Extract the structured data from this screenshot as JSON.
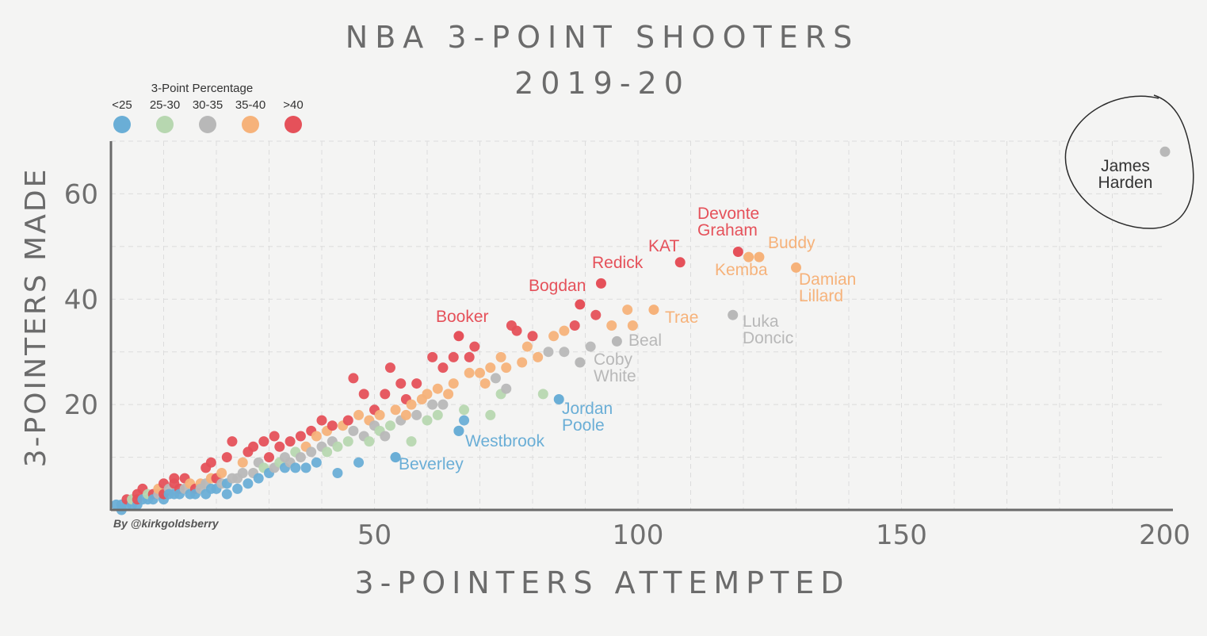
{
  "chart_data": {
    "type": "scatter",
    "title": [
      "NBA 3-POINT SHOOTERS",
      "2019-20"
    ],
    "xlabel": "3-POINTERS ATTEMPTED",
    "ylabel": "3-POINTERS MADE",
    "xlim": [
      0,
      200
    ],
    "ylim": [
      0,
      70
    ],
    "xticks": [
      "50",
      "100",
      "150",
      "200"
    ],
    "yticks": [
      "20",
      "40",
      "60"
    ],
    "grid": true,
    "credit": "By @kirkgoldsberry",
    "legend": {
      "title": "3-Point Percentage",
      "placement": "top-left",
      "bins": [
        {
          "label": "<25",
          "color": "#6aaed6"
        },
        {
          "label": "25-30",
          "color": "#b7d7b0"
        },
        {
          "label": "30-35",
          "color": "#b8b8b8"
        },
        {
          "label": "35-40",
          "color": "#f6b27a"
        },
        {
          "label": ">40",
          "color": "#e5515a"
        }
      ]
    },
    "highlighted": [
      {
        "name": "James Harden",
        "lines": [
          "James",
          "Harden"
        ],
        "x": 200,
        "y": 68,
        "bin": 2,
        "circled": true
      },
      {
        "name": "Devonte Graham",
        "lines": [
          "Devonte",
          "Graham"
        ],
        "x": 119,
        "y": 49,
        "bin": 4
      },
      {
        "name": "KAT",
        "lines": [
          "KAT"
        ],
        "x": 108,
        "y": 47,
        "bin": 4
      },
      {
        "name": "Redick",
        "lines": [
          "Redick"
        ],
        "x": 93,
        "y": 43,
        "bin": 4
      },
      {
        "name": "Bogdan",
        "lines": [
          "Bogdan"
        ],
        "x": 89,
        "y": 39,
        "bin": 4
      },
      {
        "name": "Booker",
        "lines": [
          "Booker"
        ],
        "x": 66,
        "y": 33,
        "bin": 4
      },
      {
        "name": "Buddy",
        "lines": [
          "Buddy"
        ],
        "x": 123,
        "y": 48,
        "bin": 3
      },
      {
        "name": "Kemba",
        "lines": [
          "Kemba"
        ],
        "x": 121,
        "y": 48,
        "bin": 3
      },
      {
        "name": "Damian Lillard",
        "lines": [
          "Damian",
          "Lillard"
        ],
        "x": 130,
        "y": 46,
        "bin": 3
      },
      {
        "name": "Trae",
        "lines": [
          "Trae"
        ],
        "x": 103,
        "y": 38,
        "bin": 3
      },
      {
        "name": "Luka Doncic",
        "lines": [
          "Luka",
          "Doncic"
        ],
        "x": 118,
        "y": 37,
        "bin": 2
      },
      {
        "name": "Beal",
        "lines": [
          "Beal"
        ],
        "x": 96,
        "y": 32,
        "bin": 2
      },
      {
        "name": "Coby White",
        "lines": [
          "Coby",
          "White"
        ],
        "x": 89,
        "y": 28,
        "bin": 2
      },
      {
        "name": "Jordan Poole",
        "lines": [
          "Jordan",
          "Poole"
        ],
        "x": 85,
        "y": 21,
        "bin": 0
      },
      {
        "name": "Westbrook",
        "lines": [
          "Westbrook"
        ],
        "x": 66,
        "y": 15,
        "bin": 0
      },
      {
        "name": "Beverley",
        "lines": [
          "Beverley"
        ],
        "x": 54,
        "y": 10,
        "bin": 0
      }
    ],
    "points": [
      [
        1,
        1,
        0
      ],
      [
        2,
        1,
        0
      ],
      [
        2,
        0,
        0
      ],
      [
        3,
        1,
        0
      ],
      [
        3,
        2,
        4
      ],
      [
        4,
        1,
        0
      ],
      [
        4,
        2,
        1
      ],
      [
        5,
        1,
        0
      ],
      [
        5,
        2,
        4
      ],
      [
        5,
        3,
        4
      ],
      [
        6,
        2,
        0
      ],
      [
        6,
        4,
        4
      ],
      [
        7,
        2,
        0
      ],
      [
        7,
        3,
        1
      ],
      [
        8,
        3,
        4
      ],
      [
        8,
        2,
        0
      ],
      [
        9,
        3,
        2
      ],
      [
        9,
        4,
        3
      ],
      [
        10,
        2,
        0
      ],
      [
        10,
        3,
        4
      ],
      [
        10,
        5,
        4
      ],
      [
        11,
        4,
        2
      ],
      [
        11,
        3,
        0
      ],
      [
        12,
        3,
        0
      ],
      [
        12,
        5,
        4
      ],
      [
        12,
        6,
        4
      ],
      [
        13,
        4,
        4
      ],
      [
        13,
        3,
        0
      ],
      [
        14,
        4,
        2
      ],
      [
        14,
        6,
        4
      ],
      [
        15,
        3,
        0
      ],
      [
        15,
        5,
        3
      ],
      [
        16,
        4,
        4
      ],
      [
        16,
        3,
        0
      ],
      [
        17,
        5,
        3
      ],
      [
        17,
        4,
        2
      ],
      [
        18,
        3,
        0
      ],
      [
        18,
        5,
        2
      ],
      [
        18,
        8,
        4
      ],
      [
        19,
        4,
        0
      ],
      [
        19,
        6,
        3
      ],
      [
        19,
        9,
        4
      ],
      [
        20,
        6,
        4
      ],
      [
        20,
        4,
        0
      ],
      [
        21,
        5,
        2
      ],
      [
        21,
        7,
        3
      ],
      [
        22,
        3,
        0
      ],
      [
        22,
        5,
        0
      ],
      [
        22,
        10,
        4
      ],
      [
        23,
        6,
        2
      ],
      [
        23,
        13,
        4
      ],
      [
        24,
        6,
        2
      ],
      [
        24,
        4,
        0
      ],
      [
        25,
        7,
        2
      ],
      [
        25,
        9,
        3
      ],
      [
        26,
        5,
        0
      ],
      [
        26,
        11,
        4
      ],
      [
        27,
        7,
        2
      ],
      [
        27,
        12,
        4
      ],
      [
        28,
        6,
        0
      ],
      [
        28,
        9,
        2
      ],
      [
        29,
        8,
        1
      ],
      [
        29,
        13,
        4
      ],
      [
        30,
        7,
        0
      ],
      [
        30,
        10,
        4
      ],
      [
        31,
        8,
        2
      ],
      [
        31,
        14,
        4
      ],
      [
        32,
        9,
        1
      ],
      [
        32,
        12,
        4
      ],
      [
        33,
        8,
        0
      ],
      [
        33,
        10,
        2
      ],
      [
        34,
        9,
        2
      ],
      [
        34,
        13,
        4
      ],
      [
        35,
        8,
        0
      ],
      [
        35,
        11,
        1
      ],
      [
        36,
        10,
        2
      ],
      [
        36,
        14,
        4
      ],
      [
        37,
        8,
        0
      ],
      [
        37,
        12,
        3
      ],
      [
        38,
        11,
        2
      ],
      [
        38,
        15,
        4
      ],
      [
        39,
        9,
        0
      ],
      [
        39,
        14,
        3
      ],
      [
        40,
        12,
        2
      ],
      [
        40,
        17,
        4
      ],
      [
        41,
        11,
        1
      ],
      [
        41,
        15,
        3
      ],
      [
        42,
        13,
        2
      ],
      [
        42,
        16,
        4
      ],
      [
        43,
        7,
        0
      ],
      [
        43,
        12,
        1
      ],
      [
        44,
        16,
        3
      ],
      [
        45,
        13,
        1
      ],
      [
        45,
        17,
        4
      ],
      [
        46,
        15,
        2
      ],
      [
        46,
        25,
        4
      ],
      [
        47,
        9,
        0
      ],
      [
        47,
        18,
        3
      ],
      [
        48,
        14,
        2
      ],
      [
        48,
        22,
        4
      ],
      [
        49,
        13,
        1
      ],
      [
        49,
        17,
        3
      ],
      [
        50,
        16,
        2
      ],
      [
        50,
        19,
        4
      ],
      [
        51,
        15,
        1
      ],
      [
        51,
        18,
        3
      ],
      [
        52,
        14,
        2
      ],
      [
        52,
        22,
        4
      ],
      [
        53,
        16,
        1
      ],
      [
        53,
        27,
        4
      ],
      [
        54,
        10,
        0
      ],
      [
        54,
        19,
        3
      ],
      [
        55,
        17,
        2
      ],
      [
        55,
        24,
        4
      ],
      [
        56,
        18,
        3
      ],
      [
        56,
        21,
        4
      ],
      [
        57,
        13,
        1
      ],
      [
        57,
        20,
        3
      ],
      [
        58,
        18,
        2
      ],
      [
        58,
        24,
        4
      ],
      [
        59,
        21,
        3
      ],
      [
        60,
        17,
        1
      ],
      [
        60,
        22,
        3
      ],
      [
        61,
        20,
        2
      ],
      [
        61,
        29,
        4
      ],
      [
        62,
        18,
        1
      ],
      [
        62,
        23,
        3
      ],
      [
        63,
        20,
        2
      ],
      [
        63,
        27,
        4
      ],
      [
        64,
        22,
        3
      ],
      [
        65,
        24,
        3
      ],
      [
        65,
        29,
        4
      ],
      [
        66,
        15,
        0
      ],
      [
        67,
        17,
        0
      ],
      [
        67,
        19,
        1
      ],
      [
        68,
        26,
        3
      ],
      [
        68,
        29,
        4
      ],
      [
        69,
        31,
        4
      ],
      [
        70,
        26,
        3
      ],
      [
        71,
        24,
        3
      ],
      [
        72,
        18,
        1
      ],
      [
        72,
        27,
        3
      ],
      [
        73,
        25,
        2
      ],
      [
        74,
        22,
        1
      ],
      [
        74,
        29,
        3
      ],
      [
        75,
        23,
        2
      ],
      [
        75,
        27,
        3
      ],
      [
        76,
        35,
        4
      ],
      [
        77,
        34,
        4
      ],
      [
        78,
        28,
        3
      ],
      [
        79,
        31,
        3
      ],
      [
        80,
        33,
        4
      ],
      [
        81,
        29,
        3
      ],
      [
        82,
        22,
        1
      ],
      [
        83,
        30,
        2
      ],
      [
        84,
        33,
        3
      ],
      [
        86,
        34,
        3
      ],
      [
        86,
        30,
        2
      ],
      [
        88,
        35,
        4
      ],
      [
        91,
        31,
        2
      ],
      [
        92,
        37,
        4
      ],
      [
        95,
        35,
        3
      ],
      [
        98,
        38,
        3
      ],
      [
        99,
        35,
        3
      ]
    ]
  }
}
